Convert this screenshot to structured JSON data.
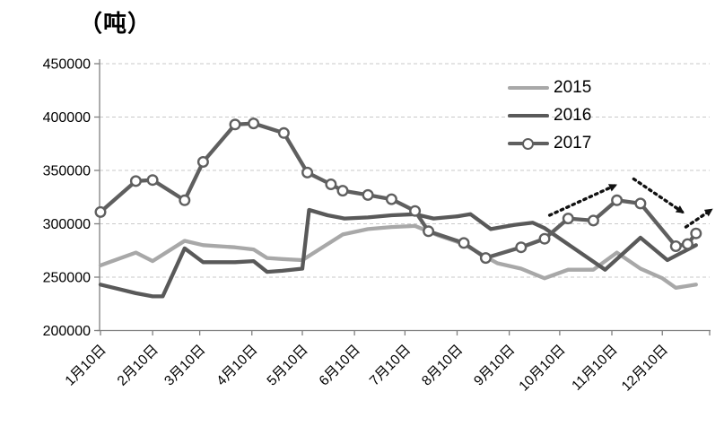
{
  "title": "（吨）",
  "colors": {
    "series_2015": "#a8a8a8",
    "series_2016": "#595959",
    "series_2017": "#5f5f5f",
    "gridline": "#c9c9c9",
    "axis": "#808080",
    "arrow": "#111111",
    "marker_fill": "#ffffff",
    "text": "#000000"
  },
  "chart_data": {
    "type": "line",
    "title": "（吨）",
    "x_unit": "day_of_year",
    "grid": "horizontal-dashed",
    "legend_position": "top-right-inside",
    "x_axis": {
      "tick_days": [
        10,
        41,
        69,
        100,
        130,
        161,
        191,
        222,
        253,
        283,
        314,
        344
      ],
      "tick_labels": [
        "1月10日",
        "2月10日",
        "3月10日",
        "4月10日",
        "5月10日",
        "6月10日",
        "7月10日",
        "8月10日",
        "9月10日",
        "10月10日",
        "11月10日",
        "12月10日"
      ],
      "range_days": [
        10,
        372
      ]
    },
    "y_axis": {
      "min": 200000,
      "max": 450000,
      "step": 50000,
      "tick_labels": [
        "200000",
        "250000",
        "300000",
        "350000",
        "400000",
        "450000"
      ]
    },
    "series": [
      {
        "name": "2015",
        "color": "#a8a8a8",
        "marker": "none",
        "points": [
          [
            10,
            261000
          ],
          [
            31,
            273000
          ],
          [
            41,
            265000
          ],
          [
            60,
            284000
          ],
          [
            71,
            280000
          ],
          [
            90,
            278000
          ],
          [
            101,
            276000
          ],
          [
            109,
            268000
          ],
          [
            118,
            267000
          ],
          [
            130,
            266000
          ],
          [
            136,
            272000
          ],
          [
            154,
            290000
          ],
          [
            169,
            295000
          ],
          [
            183,
            297000
          ],
          [
            197,
            298000
          ],
          [
            211,
            289000
          ],
          [
            226,
            281000
          ],
          [
            239,
            269000
          ],
          [
            246,
            263000
          ],
          [
            260,
            258000
          ],
          [
            274,
            249000
          ],
          [
            288,
            257000
          ],
          [
            303,
            257000
          ],
          [
            317,
            273000
          ],
          [
            331,
            258000
          ],
          [
            344,
            249000
          ],
          [
            352,
            240000
          ],
          [
            364,
            243000
          ]
        ]
      },
      {
        "name": "2016",
        "color": "#595959",
        "marker": "none",
        "points": [
          [
            10,
            243000
          ],
          [
            31,
            235000
          ],
          [
            41,
            232000
          ],
          [
            47,
            232000
          ],
          [
            60,
            277000
          ],
          [
            71,
            264000
          ],
          [
            90,
            264000
          ],
          [
            101,
            265000
          ],
          [
            109,
            255000
          ],
          [
            118,
            256000
          ],
          [
            130,
            258000
          ],
          [
            134,
            313000
          ],
          [
            145,
            308000
          ],
          [
            155,
            305000
          ],
          [
            169,
            306000
          ],
          [
            183,
            308000
          ],
          [
            197,
            309000
          ],
          [
            208,
            305000
          ],
          [
            222,
            307000
          ],
          [
            230,
            309000
          ],
          [
            242,
            295000
          ],
          [
            256,
            299000
          ],
          [
            267,
            301000
          ],
          [
            274,
            296000
          ],
          [
            310,
            257000
          ],
          [
            331,
            287000
          ],
          [
            347,
            266000
          ],
          [
            364,
            280000
          ]
        ]
      },
      {
        "name": "2017",
        "color": "#5f5f5f",
        "marker": "circle",
        "points": [
          [
            10,
            311000
          ],
          [
            31,
            340000
          ],
          [
            41,
            341000
          ],
          [
            60,
            322000
          ],
          [
            71,
            358000
          ],
          [
            90,
            393000
          ],
          [
            101,
            394000
          ],
          [
            119,
            385000
          ],
          [
            133,
            348000
          ],
          [
            147,
            337000
          ],
          [
            154,
            331000
          ],
          [
            169,
            327000
          ],
          [
            183,
            323000
          ],
          [
            197,
            312000
          ],
          [
            205,
            293000
          ],
          [
            226,
            282000
          ],
          [
            239,
            268000
          ],
          [
            260,
            278000
          ],
          [
            274,
            286000
          ],
          [
            288,
            305000
          ],
          [
            303,
            303000
          ],
          [
            317,
            322000
          ],
          [
            331,
            319000
          ],
          [
            352,
            279000
          ],
          [
            359,
            281000
          ],
          [
            364,
            291000
          ]
        ]
      }
    ],
    "annotations": {
      "style": "dotted-arrow",
      "arrows": [
        {
          "from": [
            277,
            308000
          ],
          "to": [
            316,
            336000
          ]
        },
        {
          "from": [
            327,
            342000
          ],
          "to": [
            356,
            311000
          ]
        },
        {
          "from": [
            358,
            297000
          ],
          "to": [
            373,
            313000
          ]
        }
      ]
    }
  }
}
